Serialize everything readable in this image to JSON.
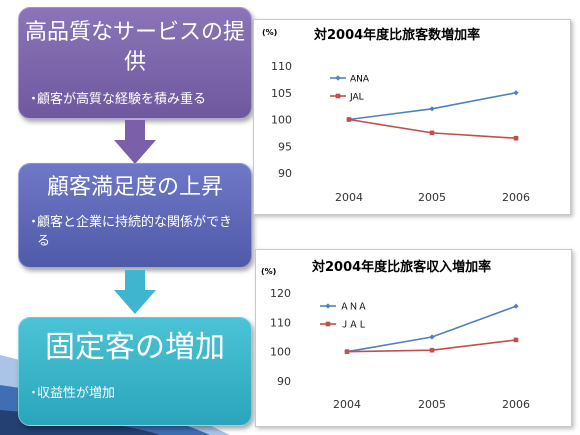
{
  "flow": {
    "box1": {
      "title": "高品質なサービスの提供",
      "bullet": "顧客が高質な経験を積み重る"
    },
    "box2": {
      "title": "顧客満足度の上昇",
      "bullet": "顧客と企業に持続的な関係ができる"
    },
    "box3": {
      "title": "固定客の増加",
      "bullet": "収益性が増加"
    },
    "bullet_symbol": "・"
  },
  "colors": {
    "ana": "#4f81bd",
    "jal": "#c0504d",
    "box1": "#7b66ab",
    "box2": "#5a63b3",
    "box3": "#35b3c8",
    "arrow": "#7b5fa8"
  },
  "chart_data": [
    {
      "type": "line",
      "title": "対2004年度比旅客数増加率",
      "unit": "(%)",
      "x": [
        "2004",
        "2005",
        "2006"
      ],
      "ylim": [
        90,
        110
      ],
      "yticks": [
        90,
        95,
        100,
        105,
        110
      ],
      "series": [
        {
          "name": "ANA",
          "values": [
            100,
            102,
            105
          ]
        },
        {
          "name": "JAL",
          "values": [
            100,
            97.5,
            96.5
          ]
        }
      ],
      "legend": "top-left",
      "grid": false
    },
    {
      "type": "line",
      "title": "対2004年度比旅客収入増加率",
      "unit": "(%)",
      "x": [
        "2004",
        "2005",
        "2006"
      ],
      "ylim": [
        90,
        120
      ],
      "yticks": [
        90,
        100,
        110,
        120
      ],
      "series": [
        {
          "name": "ＡＮＡ",
          "values": [
            100,
            105,
            115.5
          ]
        },
        {
          "name": "ＪＡＬ",
          "values": [
            100,
            100.5,
            104
          ]
        }
      ],
      "legend": "top-left",
      "grid": false
    }
  ]
}
